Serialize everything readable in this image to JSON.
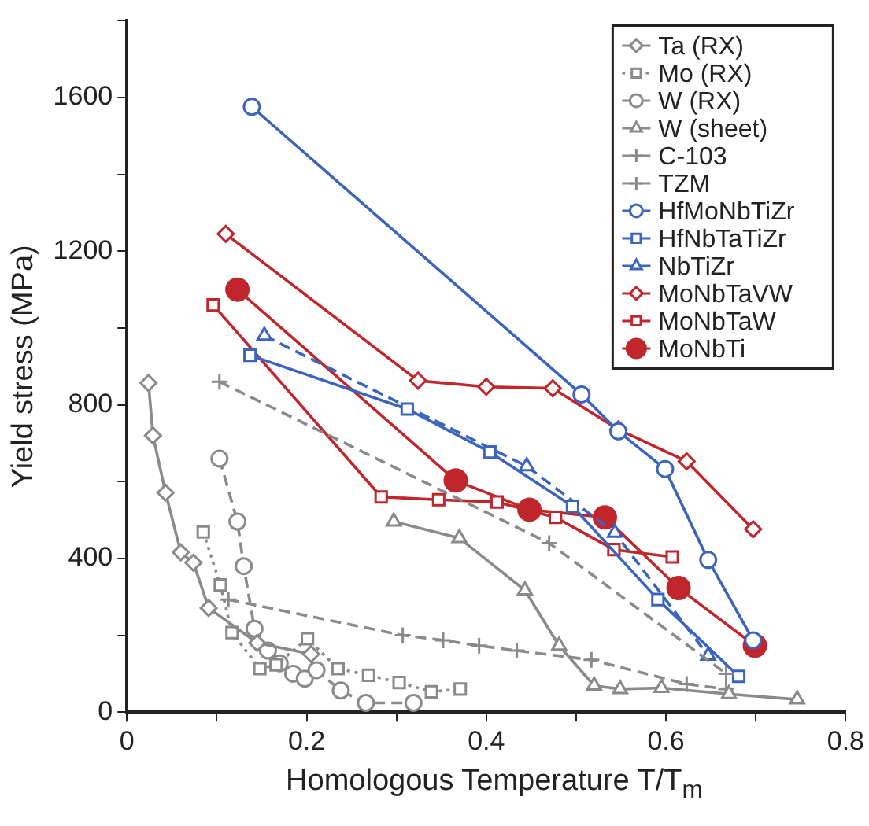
{
  "chart_data": {
    "type": "line",
    "xlabel": "Homologous Temperature T/T$_{m}$",
    "ylabel": "Yield stress (MPa)",
    "xlim": [
      0,
      0.8
    ],
    "ylim": [
      0,
      1800
    ],
    "xticks": [
      0,
      {
        "value": 0.1,
        "label": null
      },
      0.2,
      {
        "value": 0.3,
        "label": null
      },
      0.4,
      {
        "value": 0.5,
        "label": null
      },
      0.6,
      {
        "value": 0.7,
        "label": null
      },
      0.8
    ],
    "yticks": [
      0,
      {
        "value": 200,
        "label": null
      },
      400,
      {
        "value": 600,
        "label": null
      },
      800,
      {
        "value": 1000,
        "label": null
      },
      1200,
      {
        "value": 1400,
        "label": null
      },
      1600,
      {
        "value": 1800,
        "label": null
      }
    ],
    "grid": false,
    "legend": "top right",
    "series": [
      {
        "name": "Ta (RX)",
        "color": "#8a8a8a",
        "marker": "diamond",
        "line_style": "solid",
        "x": [
          0.024,
          0.029,
          0.043,
          0.06,
          0.074,
          0.091,
          0.145,
          0.205
        ],
        "values": [
          857,
          720,
          571,
          416,
          389,
          271,
          180,
          151
        ]
      },
      {
        "name": "Mo (RX)",
        "color": "#8a8a8a",
        "marker": "square",
        "line_style": "dotted",
        "x": [
          0.085,
          0.104,
          0.117,
          0.148,
          0.166,
          0.201,
          0.235,
          0.269,
          0.303,
          0.339,
          0.371
        ],
        "values": [
          469,
          331,
          207,
          113,
          123,
          191,
          113,
          96,
          77,
          53,
          60
        ]
      },
      {
        "name": "W (RX)",
        "color": "#8a8a8a",
        "marker": "circle",
        "line_style": "dashed",
        "x": [
          0.103,
          0.123,
          0.13,
          0.142,
          0.157,
          0.17,
          0.185,
          0.198,
          0.211,
          0.238,
          0.266,
          0.319
        ],
        "values": [
          660,
          496,
          380,
          217,
          160,
          127,
          100,
          87,
          109,
          56,
          24,
          24
        ]
      },
      {
        "name": "W (sheet)",
        "color": "#8a8a8a",
        "marker": "triangle",
        "line_style": "solid",
        "x": [
          0.297,
          0.37,
          0.443,
          0.481,
          0.52,
          0.549,
          0.595,
          0.67,
          0.746
        ],
        "values": [
          496,
          453,
          317,
          173,
          69,
          60,
          63,
          47,
          33
        ]
      },
      {
        "name": "C-103",
        "color": "#8a8a8a",
        "marker": "cross",
        "line_style": "dashed",
        "x": [
          0.113,
          0.307,
          0.352,
          0.392,
          0.434,
          0.517,
          0.623,
          0.667
        ],
        "values": [
          293,
          200,
          187,
          173,
          160,
          136,
          73,
          60
        ]
      },
      {
        "name": "TZM",
        "color": "#8a8a8a",
        "marker": "cross",
        "line_style": "dashed",
        "x": [
          0.103,
          0.47,
          0.667
        ],
        "values": [
          860,
          440,
          100
        ]
      },
      {
        "name": "HfMoNbTiZr",
        "color": "#3a64c0",
        "marker": "circle",
        "line_style": "solid",
        "x": [
          0.139,
          0.506,
          0.547,
          0.599,
          0.647,
          0.697
        ],
        "values": [
          1576,
          827,
          731,
          633,
          396,
          187
        ]
      },
      {
        "name": "HfNbTaTiZr",
        "color": "#3a64c0",
        "marker": "square",
        "line_style": "solid",
        "x": [
          0.137,
          0.312,
          0.404,
          0.496,
          0.591,
          0.681
        ],
        "values": [
          929,
          789,
          677,
          536,
          293,
          93
        ]
      },
      {
        "name": "NbTiZr",
        "color": "#3a64c0",
        "marker": "triangle",
        "line_style": "dashed",
        "x": [
          0.153,
          0.445,
          0.543,
          0.647
        ],
        "values": [
          980,
          640,
          467,
          147
        ]
      },
      {
        "name": "MoNbTaVW",
        "color": "#c0262c",
        "marker": "diamond",
        "line_style": "solid",
        "x": [
          0.11,
          0.324,
          0.4,
          0.474,
          0.547,
          0.623,
          0.697
        ],
        "values": [
          1245,
          863,
          847,
          843,
          736,
          653,
          476
        ]
      },
      {
        "name": "MoNbTaW",
        "color": "#c0262c",
        "marker": "square",
        "line_style": "solid",
        "x": [
          0.096,
          0.283,
          0.347,
          0.412,
          0.477,
          0.542,
          0.607
        ],
        "values": [
          1060,
          560,
          553,
          547,
          507,
          423,
          404
        ]
      },
      {
        "name": "MoNbTi",
        "color": "#c0262c",
        "marker": "filled circle",
        "line_style": "solid",
        "x": [
          0.123,
          0.366,
          0.448,
          0.532,
          0.614,
          0.699
        ],
        "values": [
          1100,
          603,
          527,
          507,
          323,
          173
        ]
      }
    ]
  }
}
